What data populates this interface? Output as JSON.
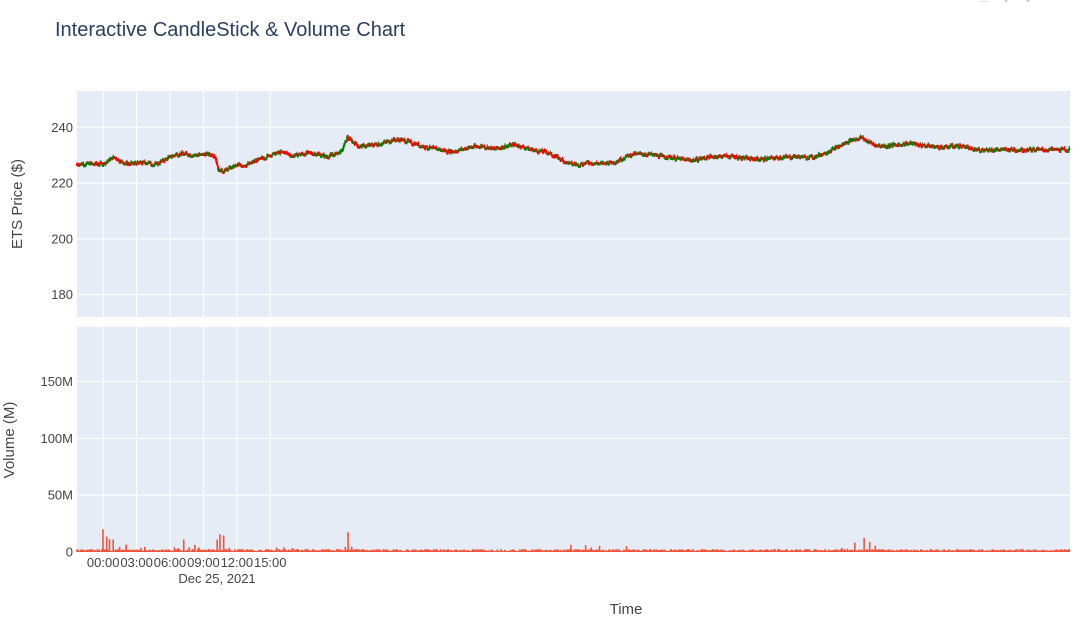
{
  "chart_data": {
    "type": "candlestick",
    "title": "Interactive CandleStick & Volume Chart",
    "xlabel": "Time",
    "date_label": "Dec 25, 2021",
    "x_ticks": [
      "00:00",
      "03:00",
      "06:00",
      "09:00",
      "12:00",
      "15:00"
    ],
    "price_panel": {
      "ylabel": "ETS Price ($)",
      "ylim": [
        172,
        253
      ],
      "y_ticks": [
        180,
        200,
        220,
        240
      ],
      "close_path": [
        [
          0.0,
          227
        ],
        [
          0.6,
          228.5
        ],
        [
          1.0,
          229.5
        ],
        [
          1.5,
          228
        ],
        [
          2.2,
          227
        ],
        [
          3.0,
          227.2
        ],
        [
          4.0,
          227.6
        ],
        [
          4.6,
          226.6
        ],
        [
          5.2,
          227.8
        ],
        [
          6.0,
          229.5
        ],
        [
          6.6,
          230.6
        ],
        [
          7.4,
          230.5
        ],
        [
          8.2,
          230.2
        ],
        [
          9.0,
          230.4
        ],
        [
          10.0,
          230.2
        ],
        [
          10.35,
          224.5
        ],
        [
          11.0,
          224.7
        ],
        [
          12.0,
          226.5
        ],
        [
          13.0,
          226.8
        ],
        [
          14.0,
          228.6
        ],
        [
          15.0,
          230.2
        ],
        [
          16.2,
          231.3
        ],
        [
          17.0,
          229.8
        ],
        [
          17.6,
          230.4
        ],
        [
          18.4,
          230.9
        ],
        [
          19.2,
          230.6
        ],
        [
          20.0,
          229.6
        ],
        [
          20.8,
          230.4
        ],
        [
          21.4,
          231.5
        ],
        [
          21.9,
          236.4
        ],
        [
          22.3,
          235.2
        ],
        [
          23.0,
          233.2
        ],
        [
          24.0,
          233.7
        ],
        [
          25.0,
          234.4
        ],
        [
          26.0,
          235.6
        ],
        [
          27.0,
          235.5
        ],
        [
          28.0,
          234.1
        ],
        [
          29.0,
          232.9
        ],
        [
          30.0,
          232.4
        ],
        [
          31.0,
          231.3
        ],
        [
          32.0,
          232.0
        ],
        [
          33.0,
          233.1
        ],
        [
          34.0,
          233.4
        ],
        [
          35.0,
          232.4
        ],
        [
          36.0,
          233.2
        ],
        [
          37.0,
          233.9
        ],
        [
          38.0,
          232.6
        ],
        [
          39.0,
          231.6
        ],
        [
          39.8,
          231.3
        ],
        [
          40.6,
          229.6
        ],
        [
          41.6,
          227.4
        ],
        [
          42.6,
          226.7
        ],
        [
          43.6,
          227.5
        ],
        [
          44.8,
          227.1
        ],
        [
          46.0,
          227.8
        ],
        [
          47.0,
          229.8
        ],
        [
          48.0,
          230.7
        ],
        [
          49.0,
          230.4
        ],
        [
          50.0,
          229.8
        ],
        [
          51.0,
          229.3
        ],
        [
          52.0,
          228.6
        ],
        [
          53.0,
          228.3
        ],
        [
          54.0,
          229.2
        ],
        [
          55.0,
          229.7
        ],
        [
          56.0,
          229.8
        ],
        [
          57.0,
          229.4
        ],
        [
          58.0,
          228.8
        ],
        [
          59.0,
          228.7
        ],
        [
          60.0,
          229.0
        ],
        [
          61.0,
          229.4
        ],
        [
          62.0,
          229.6
        ],
        [
          63.0,
          229.4
        ],
        [
          64.0,
          229.6
        ],
        [
          65.0,
          231.4
        ],
        [
          66.0,
          233.1
        ],
        [
          67.0,
          235.3
        ],
        [
          68.0,
          236.5
        ],
        [
          68.6,
          235.1
        ],
        [
          69.4,
          233.6
        ],
        [
          70.4,
          233.4
        ],
        [
          71.4,
          233.9
        ],
        [
          72.4,
          234.4
        ],
        [
          73.4,
          233.7
        ],
        [
          74.4,
          233.3
        ],
        [
          75.4,
          232.9
        ],
        [
          76.4,
          233.5
        ],
        [
          77.4,
          233.2
        ],
        [
          77.9,
          232.1
        ]
      ]
    },
    "volume_panel": {
      "ylabel": "Volume (M)",
      "ylim": [
        0,
        198
      ],
      "y_ticks": [
        0,
        50,
        100,
        150
      ],
      "y_tick_labels": [
        "0",
        "50M",
        "100M",
        "150M"
      ],
      "spikes": [
        [
          0.0,
          20
        ],
        [
          0.3,
          13.6
        ],
        [
          0.6,
          11.5
        ],
        [
          0.9,
          11
        ],
        [
          1.5,
          4.5
        ],
        [
          2.1,
          6.5
        ],
        [
          3.0,
          2.2
        ],
        [
          3.4,
          3.6
        ],
        [
          3.7,
          4.6
        ],
        [
          6.4,
          4.2
        ],
        [
          6.7,
          3.5
        ],
        [
          7.2,
          11
        ],
        [
          7.7,
          4.2
        ],
        [
          8.2,
          6.3
        ],
        [
          8.6,
          4
        ],
        [
          10.2,
          11
        ],
        [
          10.5,
          15.6
        ],
        [
          10.8,
          14.6
        ],
        [
          11.3,
          3.7
        ],
        [
          12.5,
          2.3
        ],
        [
          15.6,
          3.9
        ],
        [
          16.2,
          4.1
        ],
        [
          17.0,
          3.5
        ],
        [
          18.3,
          2.7
        ],
        [
          21.7,
          4.5
        ],
        [
          22.0,
          17.5
        ],
        [
          22.3,
          4.5
        ],
        [
          22.8,
          2.5
        ],
        [
          42.0,
          6.4
        ],
        [
          43.3,
          6
        ],
        [
          43.8,
          4
        ],
        [
          44.6,
          5.4
        ],
        [
          47.0,
          5.1
        ],
        [
          67.5,
          8.2
        ],
        [
          68.3,
          12.5
        ],
        [
          68.8,
          9
        ],
        [
          69.3,
          5.5
        ],
        [
          66.3,
          3.6
        ],
        [
          66.8,
          2.9
        ],
        [
          72.8,
          2.2
        ]
      ]
    },
    "colors": {
      "increasing": "#008000",
      "decreasing": "#ff0000",
      "volume": "#ef553b",
      "plot_bg": "#e5ecf6",
      "grid": "#ffffff"
    }
  }
}
